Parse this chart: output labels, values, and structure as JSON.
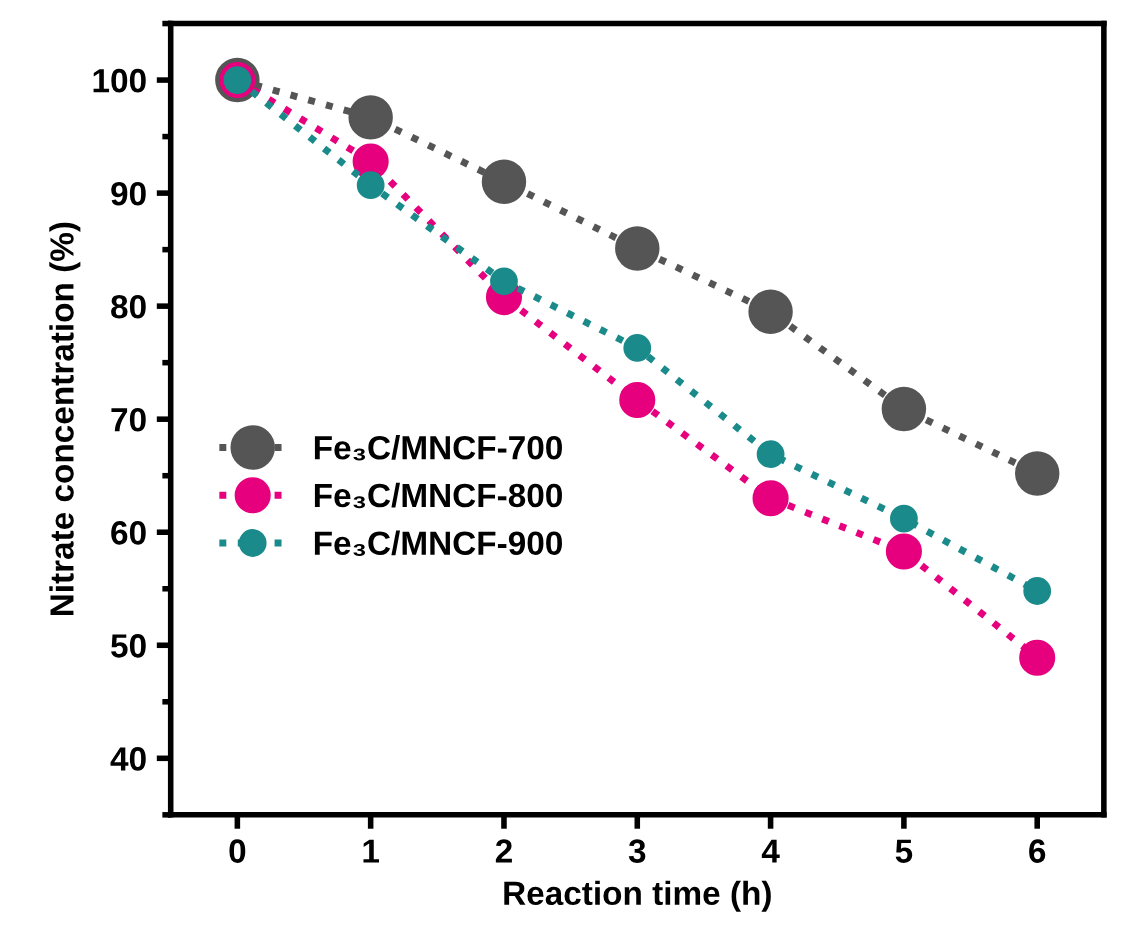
{
  "chart_data": {
    "type": "line",
    "xlabel": "Reaction time (h)",
    "ylabel": "Nitrate concentration (%)",
    "x": [
      0,
      1,
      2,
      3,
      4,
      5,
      6
    ],
    "series": [
      {
        "name": "Fe₃C/MNCF-700",
        "color": "#555555",
        "values": [
          100,
          96.7,
          91.0,
          85.1,
          79.5,
          70.9,
          65.2
        ]
      },
      {
        "name": "Fe₃C/MNCF-800",
        "color": "#e6007e",
        "values": [
          100,
          92.8,
          80.8,
          71.7,
          63.0,
          58.3,
          48.9
        ]
      },
      {
        "name": "Fe₃C/MNCF-900",
        "color": "#1a8a8a",
        "values": [
          100,
          90.7,
          82.2,
          76.3,
          66.9,
          61.2,
          54.8
        ]
      }
    ],
    "xlim": [
      -0.5,
      6.5
    ],
    "ylim": [
      35,
      105
    ],
    "xticks": [
      0,
      1,
      2,
      3,
      4,
      5,
      6
    ],
    "yticks": [
      40,
      50,
      60,
      70,
      80,
      90,
      100
    ],
    "marker": "circle",
    "line_style": "dotted",
    "grid": false,
    "legend": "left"
  }
}
